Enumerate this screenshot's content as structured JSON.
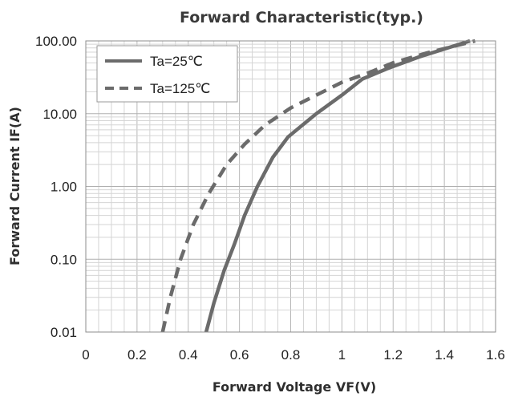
{
  "chart_data": {
    "type": "line",
    "title": "Forward Characteristic(typ.)",
    "xlabel": "Forward Voltage VF(V)",
    "ylabel": "Forward Current IF(A)",
    "xlim": [
      0,
      1.6
    ],
    "ylim": [
      0.01,
      100
    ],
    "yscale": "log",
    "grid": true,
    "legend_position": "top-left",
    "x_tick_labels": [
      "0",
      "0.2",
      "0.4",
      "0.6",
      "0.8",
      "1",
      "1.2",
      "1.4",
      "1.6"
    ],
    "y_tick_labels": [
      "100.00",
      "10.00",
      "1.00",
      "0.10",
      "0.01"
    ],
    "series": [
      {
        "name": "Ta=25℃",
        "style": "solid",
        "color": "#6b6b6b",
        "points": [
          [
            0.47,
            0.01
          ],
          [
            0.5,
            0.025
          ],
          [
            0.54,
            0.07
          ],
          [
            0.58,
            0.16
          ],
          [
            0.62,
            0.4
          ],
          [
            0.67,
            1.0
          ],
          [
            0.73,
            2.5
          ],
          [
            0.79,
            4.8
          ],
          [
            0.9,
            10
          ],
          [
            1.0,
            18
          ],
          [
            1.08,
            30
          ],
          [
            1.18,
            42
          ],
          [
            1.3,
            60
          ],
          [
            1.5,
            100
          ]
        ]
      },
      {
        "name": "Ta=125℃",
        "style": "dashed",
        "color": "#6b6b6b",
        "points": [
          [
            0.3,
            0.01
          ],
          [
            0.33,
            0.03
          ],
          [
            0.37,
            0.1
          ],
          [
            0.42,
            0.3
          ],
          [
            0.48,
            0.8
          ],
          [
            0.55,
            2.0
          ],
          [
            0.62,
            3.8
          ],
          [
            0.7,
            7
          ],
          [
            0.8,
            12
          ],
          [
            0.9,
            18
          ],
          [
            1.0,
            27
          ],
          [
            1.1,
            36
          ],
          [
            1.2,
            50
          ],
          [
            1.33,
            68
          ],
          [
            1.52,
            100
          ]
        ]
      }
    ]
  }
}
